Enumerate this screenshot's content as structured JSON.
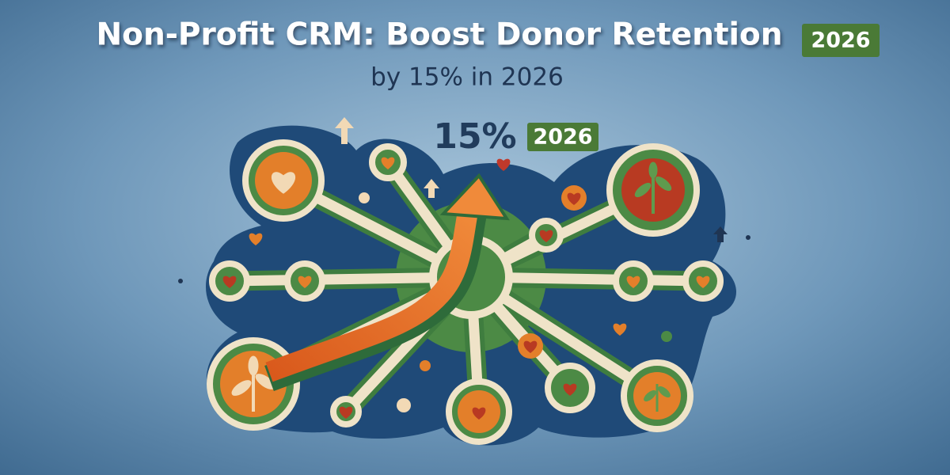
{
  "header": {
    "title": "Non-Profit CRM: Boost Donor Retention",
    "title_badge": "2026",
    "subtitle": "by 15% in 2026"
  },
  "illustration": {
    "figure": "15%",
    "badge": "2026"
  }
}
